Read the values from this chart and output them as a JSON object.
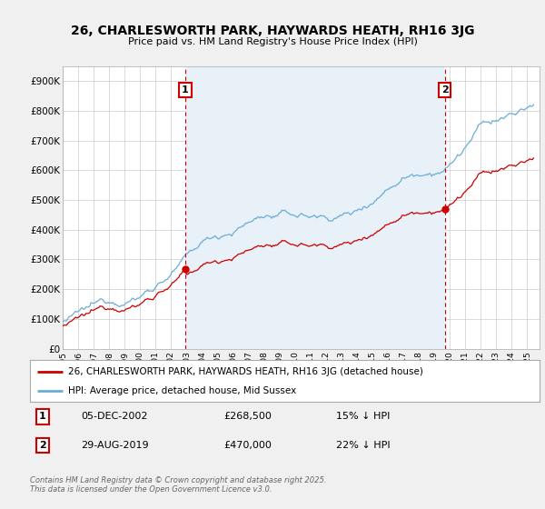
{
  "title": "26, CHARLESWORTH PARK, HAYWARDS HEATH, RH16 3JG",
  "subtitle": "Price paid vs. HM Land Registry's House Price Index (HPI)",
  "ylim": [
    0,
    950000
  ],
  "yticks": [
    0,
    100000,
    200000,
    300000,
    400000,
    500000,
    600000,
    700000,
    800000,
    900000
  ],
  "ytick_labels": [
    "£0",
    "£100K",
    "£200K",
    "£300K",
    "£400K",
    "£500K",
    "£600K",
    "£700K",
    "£800K",
    "£900K"
  ],
  "hpi_color": "#6aaed6",
  "hpi_fill_color": "#ddeeff",
  "price_color": "#cc0000",
  "marker1_date": 2002.92,
  "marker2_date": 2019.67,
  "marker1_price": 268500,
  "marker2_price": 470000,
  "legend_label1": "26, CHARLESWORTH PARK, HAYWARDS HEATH, RH16 3JG (detached house)",
  "legend_label2": "HPI: Average price, detached house, Mid Sussex",
  "row1_date": "05-DEC-2002",
  "row1_price": "£268,500",
  "row1_note": "15% ↓ HPI",
  "row2_date": "29-AUG-2019",
  "row2_price": "£470,000",
  "row2_note": "22% ↓ HPI",
  "footer": "Contains HM Land Registry data © Crown copyright and database right 2025.\nThis data is licensed under the Open Government Licence v3.0.",
  "bg_color": "#f0f0f0",
  "plot_bg": "#ffffff",
  "shade_color": "#e8f0f8"
}
